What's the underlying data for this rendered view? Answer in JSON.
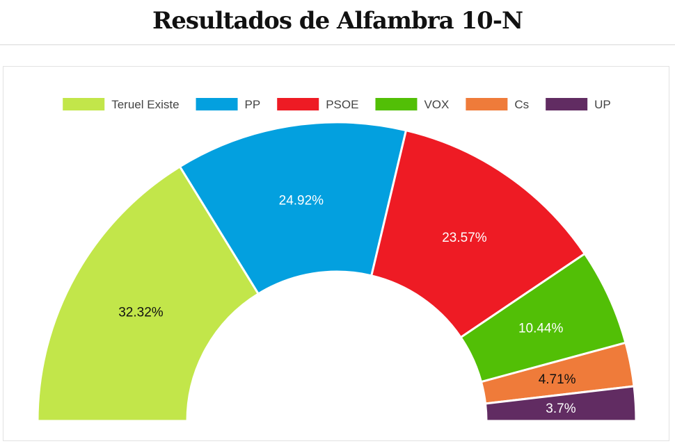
{
  "page": {
    "title": "Resultados de Alfambra 10-N"
  },
  "chart_data": {
    "type": "pie",
    "subtype": "semicircle-donut",
    "title": "Resultados de Alfambra 10-N",
    "legend_position": "top",
    "unit": "%",
    "series": [
      {
        "name": "Teruel Existe",
        "value": 32.32,
        "label": "32.32%",
        "color": "#c2e64a",
        "label_color": "#111111"
      },
      {
        "name": "PP",
        "value": 24.92,
        "label": "24.92%",
        "color": "#03a0df",
        "label_color": "#ffffff"
      },
      {
        "name": "PSOE",
        "value": 23.57,
        "label": "23.57%",
        "color": "#ee1b24",
        "label_color": "#ffffff"
      },
      {
        "name": "VOX",
        "value": 10.44,
        "label": "10.44%",
        "color": "#52bf06",
        "label_color": "#ffffff"
      },
      {
        "name": "Cs",
        "value": 4.71,
        "label": "4.71%",
        "color": "#ef7b3a",
        "label_color": "#111111"
      },
      {
        "name": "UP",
        "value": 3.7,
        "label": "3.7%",
        "color": "#612c62",
        "label_color": "#ffffff"
      }
    ]
  }
}
